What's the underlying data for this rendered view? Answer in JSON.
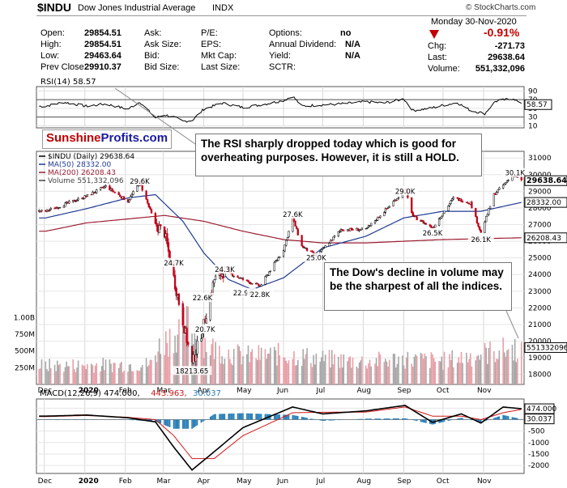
{
  "header": {
    "symbol": "$INDU",
    "name": "Dow Jones Industrial Average",
    "exchange": "INDX",
    "watermark": "© StockCharts.com",
    "date": "Monday  30-Nov-2020",
    "change_pct": "-0.91%",
    "rows": [
      [
        {
          "l": "Open:",
          "v": "29854.51"
        },
        {
          "l": "Ask:",
          "v": ""
        },
        {
          "l": "P/E:",
          "v": ""
        },
        {
          "l": "Options:",
          "v": "no"
        }
      ],
      [
        {
          "l": "High:",
          "v": "29854.51"
        },
        {
          "l": "Ask Size:",
          "v": ""
        },
        {
          "l": "EPS:",
          "v": ""
        },
        {
          "l": "Annual Dividend:",
          "v": "N/A"
        }
      ],
      [
        {
          "l": "Low:",
          "v": "29463.64"
        },
        {
          "l": "Bid:",
          "v": ""
        },
        {
          "l": "Mkt Cap:",
          "v": ""
        },
        {
          "l": "Yield:",
          "v": "N/A"
        }
      ],
      [
        {
          "l": "Prev Close:",
          "v": "29910.37"
        },
        {
          "l": "Bid Size:",
          "v": ""
        },
        {
          "l": "Last Size:",
          "v": ""
        },
        {
          "l": "SCTR:",
          "v": ""
        }
      ]
    ],
    "right_rows": [
      {
        "l": "Chg:",
        "v": "-271.73"
      },
      {
        "l": "Last:",
        "v": "29638.64"
      },
      {
        "l": "Volume:",
        "v": "551,332,096"
      }
    ],
    "arrow_color": "#c00000"
  },
  "logo": {
    "part1": "Sunshine",
    "part2": "Profits.com",
    "color1": "#c00000",
    "color2": "#1a1aa0"
  },
  "callouts": [
    "The RSI sharply dropped today which is good for overheating purposes. However, it is still a HOLD.",
    "The Dow's decline in volume may be the sharpest of all the indices."
  ],
  "chart_data": [
    {
      "type": "line",
      "panel": "rsi",
      "legend": "RSI(14) 58.57",
      "last_label": "58.57",
      "yticks": [
        10,
        30,
        50,
        70,
        90
      ],
      "levels": [
        30,
        70
      ],
      "ylim": [
        5,
        100
      ],
      "color": "#000000",
      "x": [
        "2019-12-02",
        "2019-12-16",
        "2020-01-02",
        "2020-01-17",
        "2020-02-03",
        "2020-02-12",
        "2020-02-24",
        "2020-03-02",
        "2020-03-09",
        "2020-03-16",
        "2020-03-23",
        "2020-04-01",
        "2020-04-15",
        "2020-05-01",
        "2020-05-15",
        "2020-06-01",
        "2020-06-08",
        "2020-06-15",
        "2020-07-01",
        "2020-07-15",
        "2020-08-03",
        "2020-08-17",
        "2020-09-01",
        "2020-09-08",
        "2020-09-21",
        "2020-10-01",
        "2020-10-12",
        "2020-10-22",
        "2020-11-02",
        "2020-11-10",
        "2020-11-24",
        "2020-11-30"
      ],
      "y": [
        55,
        64,
        55,
        60,
        48,
        65,
        28,
        35,
        30,
        20,
        22,
        48,
        62,
        52,
        58,
        68,
        78,
        55,
        58,
        60,
        65,
        62,
        72,
        45,
        50,
        57,
        63,
        45,
        38,
        66,
        73,
        58.57
      ]
    },
    {
      "type": "candlestick",
      "panel": "price",
      "legend": [
        {
          "text": "$INDU (Daily) 29638.64",
          "color": "#000000"
        },
        {
          "text": "MA(50) 28332.00",
          "color": "#1f3a93"
        },
        {
          "text": "MA(200) 26208.43",
          "color": "#9b1c31"
        },
        {
          "text": "Volume 551,332,096",
          "color": "#444444"
        }
      ],
      "yticks": [
        18000,
        19000,
        20000,
        21000,
        22000,
        23000,
        24000,
        25000,
        26000,
        27000,
        28000,
        29000,
        30000,
        31000
      ],
      "ylim": [
        17400,
        31400
      ],
      "last_labels": [
        {
          "text": "29638.64",
          "value": 29638.64,
          "bold": true
        },
        {
          "text": "28332.00",
          "value": 28332,
          "bold": false
        },
        {
          "text": "26208.43",
          "value": 26208.43,
          "bold": false
        }
      ],
      "annotations": [
        {
          "text": "29.6K",
          "x": "2020-02-12",
          "y": 29600
        },
        {
          "text": "24.7K",
          "x": "2020-03-09",
          "y": 24700
        },
        {
          "text": "22.6K",
          "x": "2020-03-31",
          "y": 22600
        },
        {
          "text": "20.7K",
          "x": "2020-04-02",
          "y": 20700
        },
        {
          "text": "24.3K",
          "x": "2020-04-17",
          "y": 24300
        },
        {
          "text": "22.9K",
          "x": "2020-05-01",
          "y": 22900
        },
        {
          "text": "22.8K",
          "x": "2020-05-14",
          "y": 22800
        },
        {
          "text": "27.6K",
          "x": "2020-06-08",
          "y": 27600
        },
        {
          "text": "25.0K",
          "x": "2020-06-26",
          "y": 25000
        },
        {
          "text": "29.0K",
          "x": "2020-09-02",
          "y": 29000
        },
        {
          "text": "26.5K",
          "x": "2020-09-23",
          "y": 26500
        },
        {
          "text": "26.1K",
          "x": "2020-10-30",
          "y": 26100
        },
        {
          "text": "30.1K",
          "x": "2020-11-25",
          "y": 30100
        },
        {
          "text": "18213.65",
          "x": "2020-03-23",
          "y": 18213.65
        }
      ],
      "price_path": {
        "x": [
          "2019-12-02",
          "2019-12-16",
          "2020-01-02",
          "2020-01-17",
          "2020-02-03",
          "2020-02-12",
          "2020-02-24",
          "2020-03-02",
          "2020-03-09",
          "2020-03-16",
          "2020-03-23",
          "2020-04-01",
          "2020-04-09",
          "2020-04-17",
          "2020-05-01",
          "2020-05-14",
          "2020-06-01",
          "2020-06-08",
          "2020-06-15",
          "2020-06-26",
          "2020-07-15",
          "2020-08-03",
          "2020-08-17",
          "2020-09-02",
          "2020-09-08",
          "2020-09-23",
          "2020-10-09",
          "2020-10-22",
          "2020-10-30",
          "2020-11-09",
          "2020-11-24",
          "2020-11-30"
        ],
        "y": [
          27800,
          28200,
          28700,
          29300,
          28400,
          29550,
          27000,
          26500,
          23800,
          21200,
          18600,
          21000,
          23700,
          24200,
          23700,
          23300,
          25500,
          27400,
          25700,
          25100,
          26700,
          26700,
          27800,
          29100,
          27500,
          26800,
          28600,
          28300,
          26500,
          28800,
          30000,
          29638.64
        ]
      },
      "ma50": {
        "x": [
          "2019-12-02",
          "2020-01-02",
          "2020-02-03",
          "2020-02-24",
          "2020-03-16",
          "2020-04-01",
          "2020-04-20",
          "2020-05-08",
          "2020-06-01",
          "2020-07-01",
          "2020-08-03",
          "2020-09-01",
          "2020-10-01",
          "2020-10-30",
          "2020-11-30"
        ],
        "y": [
          27400,
          27950,
          28600,
          28800,
          27200,
          25300,
          23700,
          23100,
          23800,
          25600,
          26300,
          27400,
          27800,
          27800,
          28332
        ]
      },
      "ma200": {
        "x": [
          "2019-12-02",
          "2020-01-02",
          "2020-03-02",
          "2020-04-01",
          "2020-05-01",
          "2020-06-01",
          "2020-07-01",
          "2020-08-03",
          "2020-09-01",
          "2020-10-01",
          "2020-11-30"
        ],
        "y": [
          26600,
          27100,
          27550,
          27200,
          26600,
          26100,
          25900,
          25900,
          26000,
          26100,
          26208.43
        ]
      }
    },
    {
      "type": "bar",
      "panel": "volume",
      "yticks": [
        {
          "text": "250M",
          "value": 250
        },
        {
          "text": "500M",
          "value": 500
        },
        {
          "text": "750M",
          "value": 750
        },
        {
          "text": "1.00B",
          "value": 1000
        }
      ],
      "ylim": [
        0,
        1150
      ],
      "last_label": "551332096",
      "last_value": 551.332096,
      "up_color": "#a8a8a8",
      "down_color": "#e8a0a8",
      "profile": {
        "x": [
          "2019-12-02",
          "2020-02-20",
          "2020-02-28",
          "2020-03-09",
          "2020-03-20",
          "2020-04-06",
          "2020-05-01",
          "2020-06-01",
          "2020-07-01",
          "2020-08-03",
          "2020-09-01",
          "2020-10-01",
          "2020-11-06",
          "2020-11-30"
        ],
        "y": [
          280,
          300,
          600,
          750,
          900,
          550,
          420,
          450,
          380,
          340,
          380,
          350,
          480,
          551
        ]
      }
    },
    {
      "type": "line",
      "panel": "macd",
      "legend": [
        {
          "text": "MACD(12,26,9) 474.000,",
          "color": "#000000"
        },
        {
          "text": "443.963,",
          "color": "#d01818"
        },
        {
          "text": "30.037",
          "color": "#2b7fb8"
        }
      ],
      "yticks": [
        500,
        0,
        -500,
        -1000,
        -1500,
        -2000
      ],
      "ylim": [
        -2350,
        900
      ],
      "last_labels": [
        {
          "text": "474.000",
          "value": 474
        },
        {
          "text": "30.037",
          "value": 30.037
        }
      ],
      "macd": {
        "x": [
          "2019-12-02",
          "2020-01-02",
          "2020-02-03",
          "2020-02-24",
          "2020-03-09",
          "2020-03-23",
          "2020-04-09",
          "2020-05-01",
          "2020-06-08",
          "2020-07-01",
          "2020-08-03",
          "2020-09-02",
          "2020-09-23",
          "2020-10-15",
          "2020-10-30",
          "2020-11-16",
          "2020-11-30"
        ],
        "y": [
          150,
          200,
          80,
          -100,
          -1200,
          -2200,
          -1400,
          -350,
          550,
          250,
          380,
          620,
          -120,
          250,
          -150,
          550,
          474
        ]
      },
      "signal": {
        "x": [
          "2019-12-02",
          "2020-01-02",
          "2020-02-03",
          "2020-02-24",
          "2020-03-09",
          "2020-03-23",
          "2020-04-09",
          "2020-05-01",
          "2020-06-08",
          "2020-07-01",
          "2020-08-03",
          "2020-09-02",
          "2020-09-23",
          "2020-10-15",
          "2020-10-30",
          "2020-11-16",
          "2020-11-30"
        ],
        "y": [
          130,
          180,
          100,
          0,
          -700,
          -1700,
          -1700,
          -700,
          300,
          320,
          330,
          550,
          150,
          150,
          0,
          300,
          443.963
        ]
      }
    }
  ],
  "x_axis": {
    "start": "2019-11-25",
    "end": "2020-12-02",
    "months": [
      {
        "text": "Dec",
        "date": "2019-12-01",
        "bold": false
      },
      {
        "text": "2020",
        "date": "2020-01-01",
        "bold": true
      },
      {
        "text": "Feb",
        "date": "2020-02-01",
        "bold": false
      },
      {
        "text": "Mar",
        "date": "2020-03-01",
        "bold": false
      },
      {
        "text": "Apr",
        "date": "2020-04-01",
        "bold": false
      },
      {
        "text": "May",
        "date": "2020-05-01",
        "bold": false
      },
      {
        "text": "Jun",
        "date": "2020-06-01",
        "bold": false
      },
      {
        "text": "Jul",
        "date": "2020-07-01",
        "bold": false
      },
      {
        "text": "Aug",
        "date": "2020-08-01",
        "bold": false
      },
      {
        "text": "Sep",
        "date": "2020-09-01",
        "bold": false
      },
      {
        "text": "Oct",
        "date": "2020-10-01",
        "bold": false
      },
      {
        "text": "Nov",
        "date": "2020-11-01",
        "bold": false
      }
    ]
  }
}
